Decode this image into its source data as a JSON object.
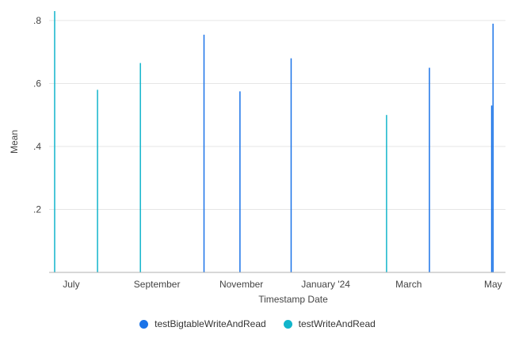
{
  "chart_data": {
    "type": "bar",
    "xlabel": "Timestamp Date",
    "ylabel": "Mean",
    "x_range": [
      "2023-06-15",
      "2024-05-10"
    ],
    "ylim": [
      0,
      0.83
    ],
    "x_ticks": [
      {
        "date": "2023-07-01",
        "label": "July"
      },
      {
        "date": "2023-09-01",
        "label": "September"
      },
      {
        "date": "2023-11-01",
        "label": "November"
      },
      {
        "date": "2024-01-01",
        "label": "January '24"
      },
      {
        "date": "2024-03-01",
        "label": "March"
      },
      {
        "date": "2024-05-01",
        "label": "May"
      }
    ],
    "y_ticks": [
      {
        "value": 0.2,
        "label": ".2"
      },
      {
        "value": 0.4,
        "label": ".4"
      },
      {
        "value": 0.6,
        "label": ".6"
      },
      {
        "value": 0.8,
        "label": ".8"
      }
    ],
    "grid": true,
    "legend_position": "bottom",
    "series": [
      {
        "name": "testBigtableWriteAndRead",
        "color": "#1a73e8",
        "points": [
          {
            "x": "2023-10-05",
            "y": 0.755
          },
          {
            "x": "2023-10-31",
            "y": 0.575
          },
          {
            "x": "2023-12-07",
            "y": 0.68
          },
          {
            "x": "2024-03-16",
            "y": 0.65
          },
          {
            "x": "2024-04-30",
            "y": 0.53
          },
          {
            "x": "2024-05-01",
            "y": 0.79
          }
        ]
      },
      {
        "name": "testWriteAndRead",
        "color": "#12b5cb",
        "points": [
          {
            "x": "2023-06-19",
            "y": 0.83
          },
          {
            "x": "2023-07-20",
            "y": 0.58
          },
          {
            "x": "2023-08-20",
            "y": 0.665
          },
          {
            "x": "2024-02-14",
            "y": 0.5
          }
        ]
      }
    ]
  }
}
